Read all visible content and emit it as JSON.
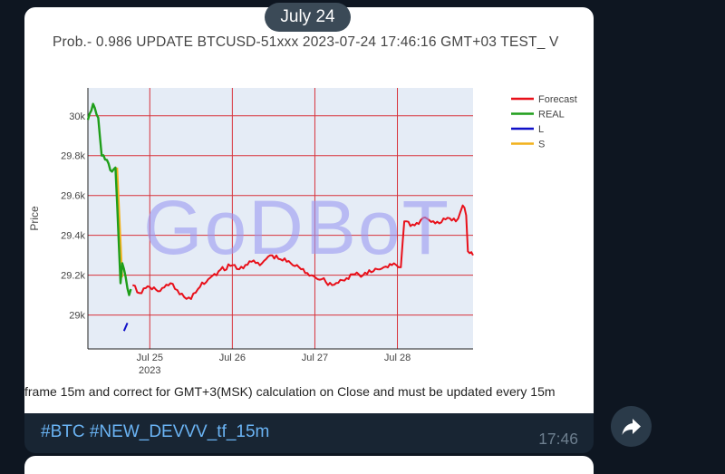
{
  "date_separator": "July 24",
  "message": {
    "chart_title": "Prob.- 0.986 UPDATE BTCUSD-51xxx 2023-07-24 17:46:16 GMT+03 TEST_ V",
    "image_caption": "frame 15m and correct for GMT+3(MSK) calculation on Close and must be updated every 15m",
    "hashtags": [
      "#BTC",
      "#NEW_DEVVV_tf_15m"
    ],
    "time": "17:46",
    "forward_icon": "share-arrow-icon"
  },
  "colors": {
    "app_background": "#0e1621",
    "bubble_background": "#182533",
    "hashtag": "#6ab3f3",
    "forecast": "#e8101a",
    "real": "#1f9e1a",
    "l": "#1010c8",
    "s": "#f2b11b",
    "plot_background": "#e5ecf6",
    "gridline": "#d8323a",
    "watermark": "#9a9af2"
  },
  "chart_data": {
    "type": "line",
    "title": "Prob.- 0.986 UPDATE BTCUSD-51xxx 2023-07-24 17:46:16 GMT+03 TEST_ V",
    "ylabel": "Price",
    "xlabel": "",
    "x_ticks": [
      "Jul 25",
      "Jul 26",
      "Jul 27",
      "Jul 28"
    ],
    "x_tick_year": "2023",
    "y_ticks": [
      "29k",
      "29.2k",
      "29.4k",
      "29.6k",
      "29.8k",
      "30k"
    ],
    "y_tick_values": [
      29000,
      29200,
      29400,
      29600,
      29800,
      30000
    ],
    "x_range": [
      "2023-07-24 06:00",
      "2023-07-28 22:00"
    ],
    "y_range": [
      28830,
      30140
    ],
    "watermark": "GoDBoT",
    "legend": {
      "position": "right",
      "entries": [
        "Forecast",
        "REAL",
        "L",
        "S"
      ]
    },
    "series": [
      {
        "name": "Forecast",
        "points": [
          [
            "2023-07-24 19:00",
            29150
          ],
          [
            "2023-07-24 21:00",
            29110
          ],
          [
            "2023-07-25 00:00",
            29140
          ],
          [
            "2023-07-25 03:00",
            29120
          ],
          [
            "2023-07-25 06:00",
            29160
          ],
          [
            "2023-07-25 08:00",
            29125
          ],
          [
            "2023-07-25 10:00",
            29090
          ],
          [
            "2023-07-25 12:00",
            29080
          ],
          [
            "2023-07-25 14:00",
            29130
          ],
          [
            "2023-07-25 17:00",
            29180
          ],
          [
            "2023-07-25 20:00",
            29220
          ],
          [
            "2023-07-26 00:00",
            29250
          ],
          [
            "2023-07-26 02:00",
            29230
          ],
          [
            "2023-07-26 05:00",
            29270
          ],
          [
            "2023-07-26 08:00",
            29250
          ],
          [
            "2023-07-26 11:00",
            29300
          ],
          [
            "2023-07-26 14:00",
            29280
          ],
          [
            "2023-07-26 17:00",
            29260
          ],
          [
            "2023-07-26 20:00",
            29230
          ],
          [
            "2023-07-26 23:00",
            29200
          ],
          [
            "2023-07-27 02:00",
            29180
          ],
          [
            "2023-07-27 05:00",
            29150
          ],
          [
            "2023-07-27 08:00",
            29175
          ],
          [
            "2023-07-27 11:00",
            29205
          ],
          [
            "2023-07-27 14:00",
            29200
          ],
          [
            "2023-07-27 17:00",
            29220
          ],
          [
            "2023-07-27 20:00",
            29240
          ],
          [
            "2023-07-27 23:00",
            29260
          ],
          [
            "2023-07-28 01:00",
            29240
          ],
          [
            "2023-07-28 02:00",
            29470
          ],
          [
            "2023-07-28 05:00",
            29450
          ],
          [
            "2023-07-28 08:00",
            29490
          ],
          [
            "2023-07-28 11:00",
            29460
          ],
          [
            "2023-07-28 14:00",
            29480
          ],
          [
            "2023-07-28 17:00",
            29470
          ],
          [
            "2023-07-28 19:00",
            29550
          ],
          [
            "2023-07-28 20:00",
            29500
          ],
          [
            "2023-07-28 20:30",
            29320
          ],
          [
            "2023-07-28 22:00",
            29300
          ]
        ]
      },
      {
        "name": "REAL",
        "points": [
          [
            "2023-07-24 06:00",
            29980
          ],
          [
            "2023-07-24 07:30",
            30060
          ],
          [
            "2023-07-24 09:00",
            29990
          ],
          [
            "2023-07-24 10:00",
            29800
          ],
          [
            "2023-07-24 11:00",
            29780
          ],
          [
            "2023-07-24 12:00",
            29760
          ],
          [
            "2023-07-24 13:00",
            29720
          ],
          [
            "2023-07-24 14:00",
            29740
          ],
          [
            "2023-07-24 15:00",
            29350
          ],
          [
            "2023-07-24 15:30",
            29160
          ],
          [
            "2023-07-24 16:00",
            29260
          ],
          [
            "2023-07-24 17:00",
            29190
          ],
          [
            "2023-07-24 18:00",
            29100
          ],
          [
            "2023-07-24 18:30",
            29130
          ]
        ]
      },
      {
        "name": "L",
        "points": [
          [
            "2023-07-24 16:30",
            28920
          ],
          [
            "2023-07-24 17:30",
            28960
          ]
        ]
      },
      {
        "name": "S",
        "points": [
          [
            "2023-07-24 14:30",
            29740
          ],
          [
            "2023-07-24 16:00",
            29190
          ]
        ]
      }
    ]
  }
}
